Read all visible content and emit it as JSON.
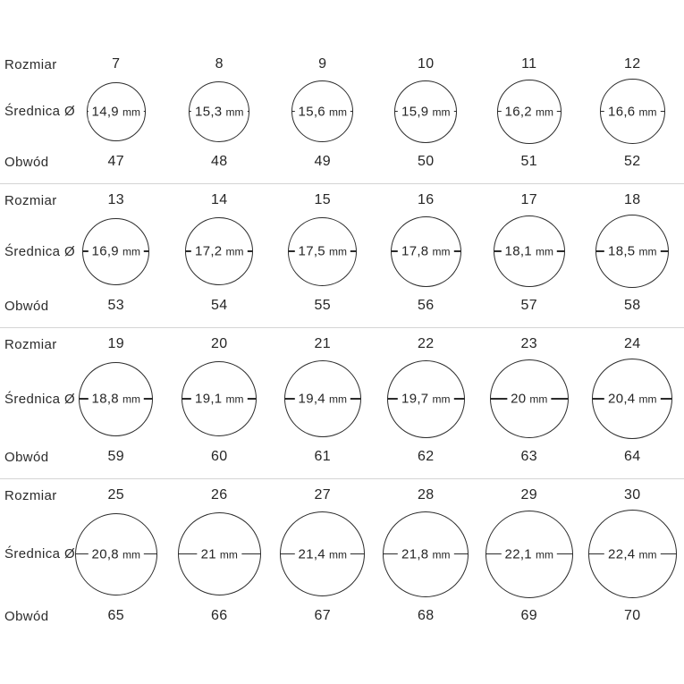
{
  "labels": {
    "size": "Rozmiar",
    "diameter": "Średnica Ø",
    "circumference": "Obwód",
    "unit": "mm"
  },
  "colors": {
    "background": "#ffffff",
    "text": "#2b2b2b",
    "circle_stroke": "#2b2b2b",
    "divider": "#d4d4d4"
  },
  "rows": [
    {
      "items": [
        {
          "size": "7",
          "diameter": "14,9",
          "diameter_mm": 14.9,
          "circumference": "47"
        },
        {
          "size": "8",
          "diameter": "15,3",
          "diameter_mm": 15.3,
          "circumference": "48"
        },
        {
          "size": "9",
          "diameter": "15,6",
          "diameter_mm": 15.6,
          "circumference": "49"
        },
        {
          "size": "10",
          "diameter": "15,9",
          "diameter_mm": 15.9,
          "circumference": "50"
        },
        {
          "size": "11",
          "diameter": "16,2",
          "diameter_mm": 16.2,
          "circumference": "51"
        },
        {
          "size": "12",
          "diameter": "16,6",
          "diameter_mm": 16.6,
          "circumference": "52"
        }
      ]
    },
    {
      "items": [
        {
          "size": "13",
          "diameter": "16,9",
          "diameter_mm": 16.9,
          "circumference": "53"
        },
        {
          "size": "14",
          "diameter": "17,2",
          "diameter_mm": 17.2,
          "circumference": "54"
        },
        {
          "size": "15",
          "diameter": "17,5",
          "diameter_mm": 17.5,
          "circumference": "55"
        },
        {
          "size": "16",
          "diameter": "17,8",
          "diameter_mm": 17.8,
          "circumference": "56"
        },
        {
          "size": "17",
          "diameter": "18,1",
          "diameter_mm": 18.1,
          "circumference": "57"
        },
        {
          "size": "18",
          "diameter": "18,5",
          "diameter_mm": 18.5,
          "circumference": "58"
        }
      ]
    },
    {
      "items": [
        {
          "size": "19",
          "diameter": "18,8",
          "diameter_mm": 18.8,
          "circumference": "59"
        },
        {
          "size": "20",
          "diameter": "19,1",
          "diameter_mm": 19.1,
          "circumference": "60"
        },
        {
          "size": "21",
          "diameter": "19,4",
          "diameter_mm": 19.4,
          "circumference": "61"
        },
        {
          "size": "22",
          "diameter": "19,7",
          "diameter_mm": 19.7,
          "circumference": "62"
        },
        {
          "size": "23",
          "diameter": "20",
          "diameter_mm": 20.0,
          "circumference": "63"
        },
        {
          "size": "24",
          "diameter": "20,4",
          "diameter_mm": 20.4,
          "circumference": "64"
        }
      ]
    },
    {
      "items": [
        {
          "size": "25",
          "diameter": "20,8",
          "diameter_mm": 20.8,
          "circumference": "65"
        },
        {
          "size": "26",
          "diameter": "21",
          "diameter_mm": 21.0,
          "circumference": "66"
        },
        {
          "size": "27",
          "diameter": "21,4",
          "diameter_mm": 21.4,
          "circumference": "67"
        },
        {
          "size": "28",
          "diameter": "21,8",
          "diameter_mm": 21.8,
          "circumference": "68"
        },
        {
          "size": "29",
          "diameter": "22,1",
          "diameter_mm": 22.1,
          "circumference": "69"
        },
        {
          "size": "30",
          "diameter": "22,4",
          "diameter_mm": 22.4,
          "circumference": "70"
        }
      ]
    }
  ],
  "chart_data": {
    "type": "table",
    "columns": [
      "Rozmiar",
      "Średnica mm",
      "Obwód"
    ],
    "rows": [
      [
        7,
        14.9,
        47
      ],
      [
        8,
        15.3,
        48
      ],
      [
        9,
        15.6,
        49
      ],
      [
        10,
        15.9,
        50
      ],
      [
        11,
        16.2,
        51
      ],
      [
        12,
        16.6,
        52
      ],
      [
        13,
        16.9,
        53
      ],
      [
        14,
        17.2,
        54
      ],
      [
        15,
        17.5,
        55
      ],
      [
        16,
        17.8,
        56
      ],
      [
        17,
        18.1,
        57
      ],
      [
        18,
        18.5,
        58
      ],
      [
        19,
        18.8,
        59
      ],
      [
        20,
        19.1,
        60
      ],
      [
        21,
        19.4,
        61
      ],
      [
        22,
        19.7,
        62
      ],
      [
        23,
        20.0,
        63
      ],
      [
        24,
        20.4,
        64
      ],
      [
        25,
        20.8,
        65
      ],
      [
        26,
        21.0,
        66
      ],
      [
        27,
        21.4,
        67
      ],
      [
        28,
        21.8,
        68
      ],
      [
        29,
        22.1,
        69
      ],
      [
        30,
        22.4,
        70
      ]
    ]
  }
}
